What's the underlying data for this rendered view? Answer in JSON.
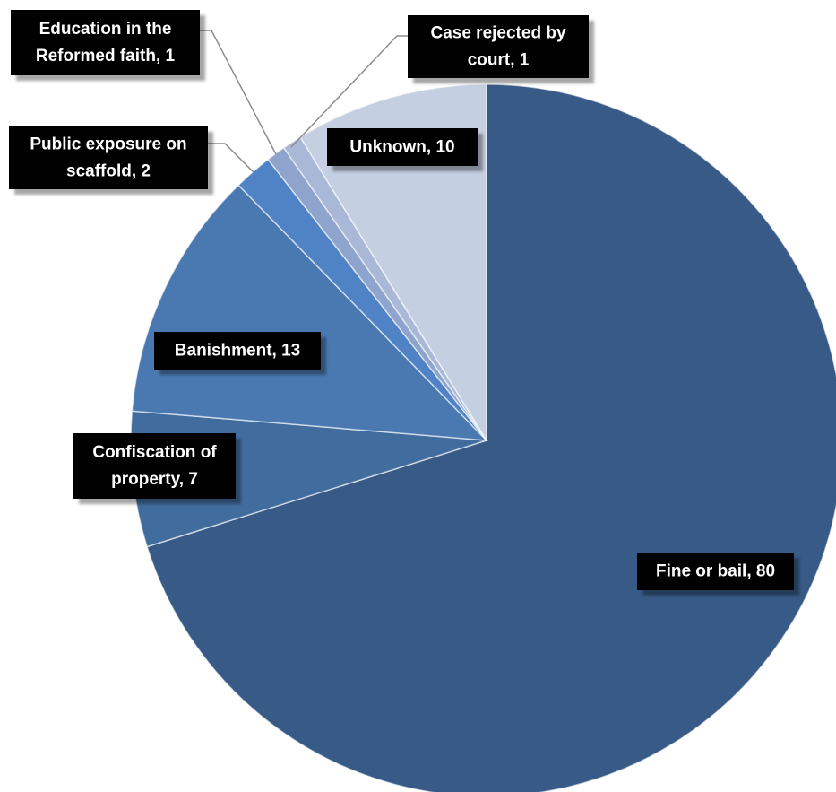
{
  "chart_data": {
    "type": "pie",
    "title": "",
    "start_angle_deg": 0,
    "direction": "clockwise",
    "legend": "none",
    "slices": [
      {
        "name": "Fine or bail",
        "value": 80,
        "label_lines": [
          "Fine or bail, 80"
        ],
        "color": "#375a86"
      },
      {
        "name": "Confiscation of property",
        "value": 7,
        "label_lines": [
          "Confiscation of",
          "property, 7"
        ],
        "color": "#416d9e"
      },
      {
        "name": "Banishment",
        "value": 13,
        "label_lines": [
          "Banishment, 13"
        ],
        "color": "#4a79b2"
      },
      {
        "name": "Public exposure on scaffold",
        "value": 2,
        "label_lines": [
          "Public exposure on",
          "scaffold, 2"
        ],
        "color": "#4f83c5"
      },
      {
        "name": "Education in the Reformed faith",
        "value": 1,
        "label_lines": [
          "Education in the",
          "Reformed faith, 1"
        ],
        "color": "#8ea4cc"
      },
      {
        "name": "Case rejected by court",
        "value": 1,
        "label_lines": [
          "Case rejected by",
          "court, 1"
        ],
        "color": "#a9b8d7"
      },
      {
        "name": "Unknown",
        "value": 10,
        "label_lines": [
          "Unknown, 10"
        ],
        "color": "#c5cfe2"
      }
    ]
  }
}
